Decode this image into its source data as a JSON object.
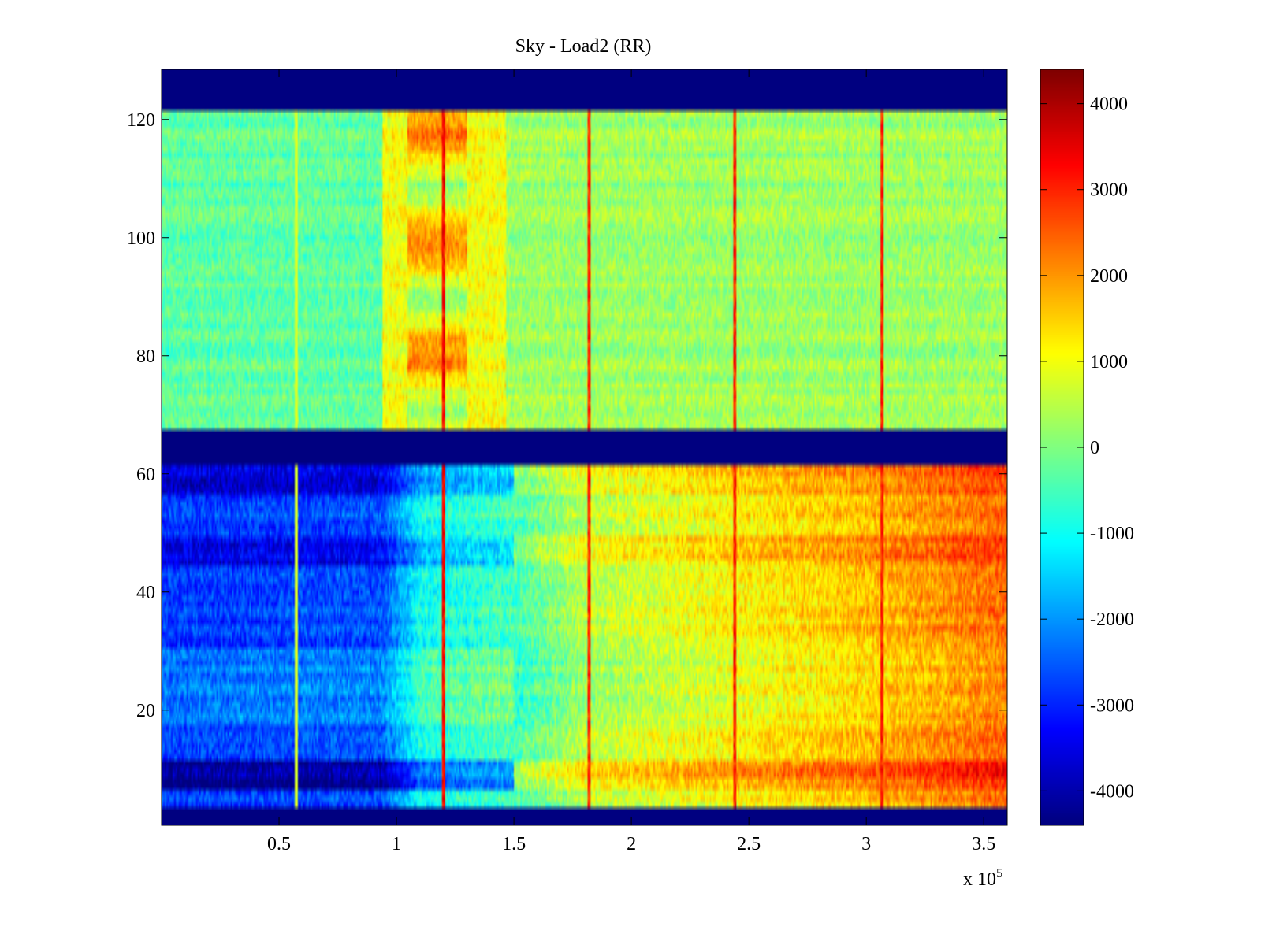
{
  "chart_data": {
    "type": "heatmap",
    "title": "Sky - Load2 (RR)",
    "xlabel": "",
    "ylabel": "",
    "x_multiplier_label": "x 10",
    "x_multiplier_exponent": "5",
    "xlim": [
      0.0,
      3.6
    ],
    "ylim": [
      0.5,
      128.5
    ],
    "x_ticks": [
      0.5,
      1,
      1.5,
      2,
      2.5,
      3,
      3.5
    ],
    "x_tick_labels": [
      "0.5",
      "1",
      "1.5",
      "2",
      "2.5",
      "3",
      "3.5"
    ],
    "y_ticks": [
      20,
      40,
      60,
      80,
      100,
      120
    ],
    "y_tick_labels": [
      "20",
      "40",
      "60",
      "80",
      "100",
      "120"
    ],
    "colormap": "jet",
    "clim": [
      -4400,
      4400
    ],
    "colorbar_ticks": [
      4000,
      3000,
      2000,
      1000,
      0,
      -1000,
      -2000,
      -3000,
      -4000
    ],
    "colorbar_tick_labels": [
      "4000",
      "3000",
      "2000",
      "1000",
      "0",
      "-1000",
      "-2000",
      "-3000",
      "-4000"
    ],
    "masked_row_ranges": [
      [
        0.5,
        3.5
      ],
      [
        61.5,
        67.5
      ],
      [
        121.5,
        128.5
      ]
    ],
    "masked_value": -4400,
    "upper_band": {
      "rows": [
        68,
        121
      ],
      "x_breaks": [
        0.0,
        0.94,
        1.47,
        3.6
      ],
      "segment_levels": [
        -300,
        1000,
        250
      ],
      "hot_region": {
        "x": [
          1.05,
          1.3
        ],
        "value": 2200
      }
    },
    "lower_band": {
      "rows": [
        4,
        61
      ],
      "x_profile_x": [
        0.0,
        0.94,
        1.1,
        1.5,
        1.8,
        2.5,
        3.05,
        3.6
      ],
      "x_profile_v": [
        -2800,
        -2600,
        -1000,
        -500,
        500,
        1200,
        1700,
        2400
      ],
      "row_bias": [
        {
          "rows": [
            7,
            11
          ],
          "value": -1500
        },
        {
          "rows": [
            45,
            49
          ],
          "value": -800
        },
        {
          "rows": [
            57,
            61
          ],
          "value": -900
        },
        {
          "rows": [
            18,
            30
          ],
          "value": 500
        }
      ]
    },
    "spike_lines": [
      {
        "x": 0.575,
        "value": 900
      },
      {
        "x": 1.2,
        "value": 3800
      },
      {
        "x": 1.82,
        "value": 3400
      },
      {
        "x": 2.44,
        "value": 3500
      },
      {
        "x": 3.065,
        "value": 3500
      }
    ]
  }
}
